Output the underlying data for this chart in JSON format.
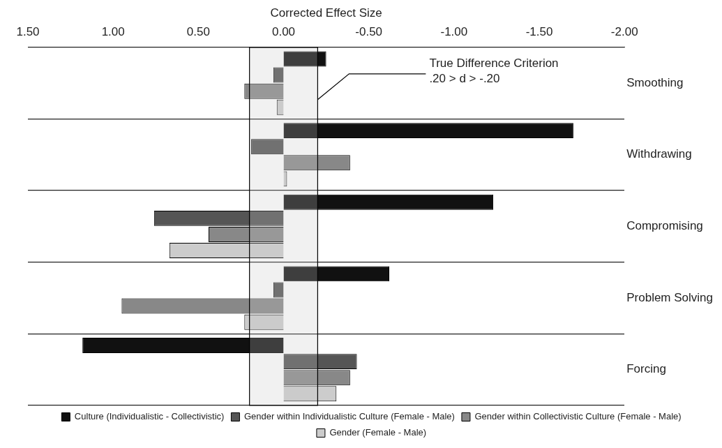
{
  "chart_data": {
    "type": "bar",
    "orientation": "horizontal",
    "xlabel": "Corrected Effect Size",
    "categories": [
      "Smoothing",
      "Withdrawing",
      "Compromising",
      "Problem Solving",
      "Forcing"
    ],
    "series": [
      {
        "name": "Culture (Individualistic - Collectivistic)",
        "color": "#111111",
        "values": [
          -0.25,
          -1.7,
          -1.23,
          -0.62,
          1.18
        ]
      },
      {
        "name": "Gender within Individualistic Culture (Female - Male)",
        "color": "#555555",
        "values": [
          0.06,
          0.19,
          0.76,
          0.06,
          -0.43
        ]
      },
      {
        "name": "Gender within Collectivistic Culture (Female - Male)",
        "color": "#888888",
        "values": [
          0.23,
          -0.39,
          0.44,
          0.95,
          -0.39
        ]
      },
      {
        "name": "Gender (Female - Male)",
        "color": "#cccccc",
        "values": [
          0.04,
          -0.02,
          0.67,
          0.23,
          -0.31
        ]
      }
    ],
    "xlim": [
      1.5,
      -2.0
    ],
    "xticks": [
      {
        "value": 1.5,
        "label": "1.50"
      },
      {
        "value": 1.0,
        "label": "1.00"
      },
      {
        "value": 0.5,
        "label": "0.50"
      },
      {
        "value": 0,
        "label": "0.00"
      },
      {
        "value": -0.5,
        "label": "-0.50"
      },
      {
        "value": -1.0,
        "label": "-1.00"
      },
      {
        "value": -1.5,
        "label": "-1.50"
      },
      {
        "value": -2.0,
        "label": "-2.00"
      }
    ],
    "bands": [
      {
        "axis": "x",
        "from": 0.2,
        "to": -0.2,
        "label": "True Difference Criterion\n.20 > d > -.20"
      }
    ],
    "grid": "y",
    "legend": "bottom"
  }
}
